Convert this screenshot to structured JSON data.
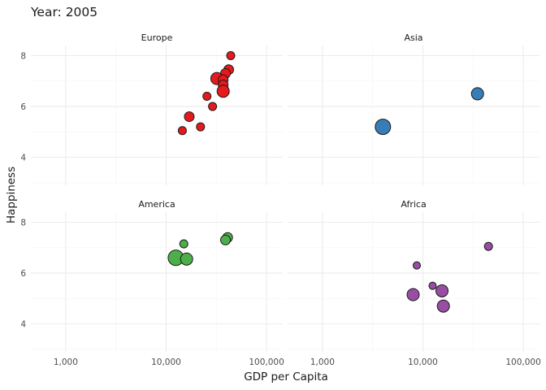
{
  "chart_data": {
    "type": "scatter",
    "title": "Year: 2005",
    "xlabel": "GDP per Capita",
    "ylabel": "Happiness",
    "x_scale": "log10",
    "xlim": [
      450,
      145000
    ],
    "ylim": [
      2.9,
      8.4
    ],
    "x_ticks": [
      1000,
      10000,
      100000
    ],
    "x_tick_labels": [
      "1,000",
      "10,000",
      "100,000"
    ],
    "y_ticks": [
      4,
      6,
      8
    ],
    "y_tick_labels": [
      "4",
      "6",
      "8"
    ],
    "grid": true,
    "legend": "none",
    "panels": [
      {
        "name": "Europe",
        "color": "#e41a1c",
        "points": [
          {
            "x": 44000,
            "y": 8.0,
            "size": "small"
          },
          {
            "x": 42000,
            "y": 7.45,
            "size": "medium"
          },
          {
            "x": 39000,
            "y": 7.3,
            "size": "medium"
          },
          {
            "x": 32000,
            "y": 7.1,
            "size": "large"
          },
          {
            "x": 37000,
            "y": 7.05,
            "size": "medium"
          },
          {
            "x": 37000,
            "y": 6.85,
            "size": "medium"
          },
          {
            "x": 37000,
            "y": 6.6,
            "size": "large"
          },
          {
            "x": 25500,
            "y": 6.4,
            "size": "small"
          },
          {
            "x": 29000,
            "y": 6.0,
            "size": "small"
          },
          {
            "x": 17000,
            "y": 5.6,
            "size": "medium"
          },
          {
            "x": 22000,
            "y": 5.2,
            "size": "small"
          },
          {
            "x": 14500,
            "y": 5.05,
            "size": "small"
          }
        ]
      },
      {
        "name": "Asia",
        "color": "#377eb8",
        "points": [
          {
            "x": 35000,
            "y": 6.5,
            "size": "large"
          },
          {
            "x": 4000,
            "y": 5.2,
            "size": "xlarge"
          }
        ]
      },
      {
        "name": "America",
        "color": "#4daf4a",
        "points": [
          {
            "x": 41000,
            "y": 7.4,
            "size": "medium"
          },
          {
            "x": 39000,
            "y": 7.3,
            "size": "medium"
          },
          {
            "x": 15000,
            "y": 7.15,
            "size": "small"
          },
          {
            "x": 12500,
            "y": 6.6,
            "size": "xlarge"
          },
          {
            "x": 16000,
            "y": 6.55,
            "size": "large"
          }
        ]
      },
      {
        "name": "Africa",
        "color": "#984ea3",
        "points": [
          {
            "x": 45000,
            "y": 7.05,
            "size": "small"
          },
          {
            "x": 8700,
            "y": 6.3,
            "size": "xsmall"
          },
          {
            "x": 12500,
            "y": 5.5,
            "size": "xsmall"
          },
          {
            "x": 15500,
            "y": 5.3,
            "size": "large"
          },
          {
            "x": 8000,
            "y": 5.15,
            "size": "large"
          },
          {
            "x": 16000,
            "y": 4.7,
            "size": "large"
          }
        ]
      }
    ]
  }
}
